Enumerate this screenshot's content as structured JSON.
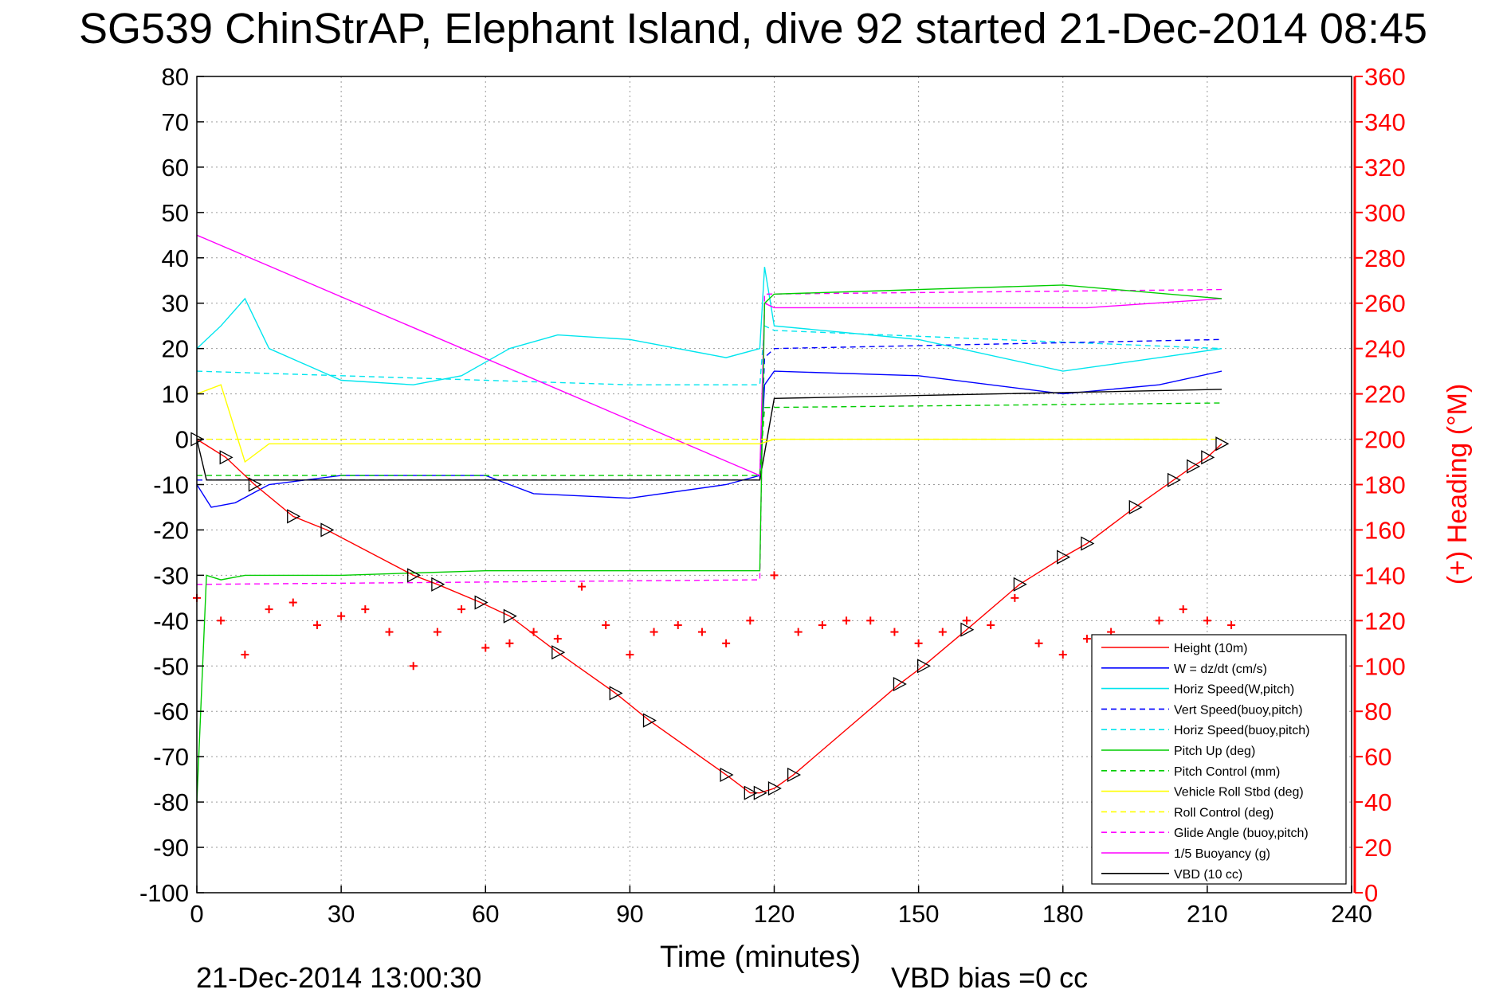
{
  "chart_data": {
    "type": "line",
    "title": "SG539 ChinStrAP, Elephant Island, dive 92 started 21-Dec-2014 08:45",
    "xlabel": "Time (minutes)",
    "ylabel_right": "(+) Heading (°M)",
    "footer_left": "21-Dec-2014 13:00:30",
    "footer_right": "VBD bias =0 cc",
    "xlim": [
      0,
      240
    ],
    "ylim": [
      -100,
      80
    ],
    "ylim_right": [
      0,
      360
    ],
    "xticks": [
      0,
      30,
      60,
      90,
      120,
      150,
      180,
      210,
      240
    ],
    "yticks": [
      80,
      70,
      60,
      50,
      40,
      30,
      20,
      10,
      0,
      -10,
      -20,
      -30,
      -40,
      -50,
      -60,
      -70,
      -80,
      -90,
      -100
    ],
    "yticks_right": [
      360,
      340,
      320,
      300,
      280,
      260,
      240,
      220,
      200,
      180,
      160,
      140,
      120,
      100,
      80,
      60,
      40,
      20,
      0
    ],
    "grid": true,
    "legend_position": "bottom-right",
    "colors": {
      "right_axis": "#ff0000",
      "grid": "#9a9a9a"
    },
    "series": [
      {
        "name": "Height (10m)",
        "color": "#ff0000",
        "style": "solid",
        "marker": "triangle",
        "x": [
          0,
          6,
          12,
          20,
          27,
          45,
          50,
          59,
          65,
          75,
          87,
          94,
          110,
          115,
          117,
          120,
          124,
          146,
          151,
          160,
          171,
          180,
          185,
          195,
          203,
          207,
          210,
          213
        ],
        "y": [
          0,
          -4,
          -10,
          -17,
          -20,
          -30,
          -32,
          -36,
          -39,
          -47,
          -56,
          -62,
          -74,
          -78,
          -78,
          -77,
          -74,
          -54,
          -50,
          -42,
          -32,
          -26,
          -23,
          -15,
          -9,
          -6,
          -4,
          -1
        ]
      },
      {
        "name": "W = dz/dt (cm/s)",
        "color": "#0000ff",
        "style": "solid",
        "x": [
          0,
          3,
          8,
          15,
          30,
          60,
          70,
          90,
          110,
          117,
          118,
          120,
          150,
          180,
          200,
          213
        ],
        "y": [
          -10,
          -15,
          -14,
          -10,
          -8,
          -8,
          -12,
          -13,
          -10,
          -8,
          12,
          15,
          14,
          10,
          12,
          15
        ]
      },
      {
        "name": "Horiz Speed(W,pitch)",
        "color": "#00e5ee",
        "style": "solid",
        "x": [
          0,
          5,
          10,
          15,
          30,
          45,
          55,
          65,
          75,
          90,
          110,
          117,
          118,
          120,
          150,
          180,
          200,
          213
        ],
        "y": [
          20,
          25,
          31,
          20,
          13,
          12,
          14,
          20,
          23,
          22,
          18,
          20,
          38,
          25,
          22,
          15,
          18,
          20
        ]
      },
      {
        "name": "Vert Speed(buoy,pitch)",
        "color": "#0000ff",
        "style": "dashed",
        "x": [
          0,
          117,
          118,
          120,
          213
        ],
        "y": [
          -9,
          -9,
          18,
          20,
          22
        ]
      },
      {
        "name": "Horiz Speed(buoy,pitch)",
        "color": "#00e5ee",
        "style": "dashed",
        "x": [
          0,
          30,
          60,
          90,
          117,
          118,
          120,
          213
        ],
        "y": [
          15,
          14,
          13,
          12,
          12,
          25,
          24,
          20
        ]
      },
      {
        "name": "Pitch Up (deg)",
        "color": "#00cc00",
        "style": "solid",
        "x": [
          0,
          2,
          5,
          10,
          30,
          60,
          90,
          117,
          118,
          120,
          150,
          180,
          213
        ],
        "y": [
          -80,
          -30,
          -31,
          -30,
          -30,
          -29,
          -29,
          -29,
          30,
          32,
          33,
          34,
          31
        ]
      },
      {
        "name": "Pitch Control (mm)",
        "color": "#00cc00",
        "style": "dashed",
        "x": [
          0,
          117,
          118,
          213
        ],
        "y": [
          -8,
          -8,
          7,
          8
        ]
      },
      {
        "name": "Vehicle Roll Stbd (deg)",
        "color": "#ffff00",
        "style": "solid",
        "x": [
          0,
          5,
          10,
          15,
          30,
          60,
          90,
          117,
          120,
          150,
          180,
          210
        ],
        "y": [
          10,
          12,
          -5,
          -1,
          -1,
          -1,
          -1,
          -1,
          0,
          0,
          0,
          0
        ]
      },
      {
        "name": "Roll Control (deg)",
        "color": "#ffff00",
        "style": "dashed",
        "x": [
          0,
          213
        ],
        "y": [
          0,
          0
        ]
      },
      {
        "name": "Glide Angle (buoy,pitch)",
        "color": "#ff00ff",
        "style": "dashed",
        "x": [
          0,
          117,
          118,
          213
        ],
        "y": [
          -32,
          -31,
          32,
          33
        ]
      },
      {
        "name": "1/5 Buoyancy (g)",
        "color": "#ff00ff",
        "style": "solid",
        "x": [
          0,
          117,
          118,
          120,
          185,
          213
        ],
        "y": [
          45,
          -8,
          30,
          29,
          29,
          31
        ]
      },
      {
        "name": "VBD (10 cc)",
        "color": "#000000",
        "style": "solid",
        "x": [
          0,
          2,
          117,
          120,
          213
        ],
        "y": [
          0,
          -9,
          -9,
          9,
          11
        ]
      },
      {
        "name": "Heading",
        "color": "#ff0000",
        "style": "markers",
        "marker": "+",
        "axis": "right",
        "x": [
          0,
          5,
          10,
          15,
          20,
          25,
          30,
          35,
          40,
          45,
          50,
          55,
          60,
          65,
          70,
          75,
          80,
          85,
          90,
          95,
          100,
          105,
          110,
          115,
          120,
          125,
          130,
          135,
          140,
          145,
          150,
          155,
          160,
          165,
          170,
          175,
          180,
          185,
          190,
          195,
          200,
          205,
          210,
          215
        ],
        "y": [
          130,
          120,
          105,
          125,
          128,
          118,
          122,
          125,
          115,
          100,
          115,
          125,
          108,
          110,
          115,
          112,
          135,
          118,
          105,
          115,
          118,
          115,
          110,
          120,
          140,
          115,
          118,
          120,
          120,
          115,
          110,
          115,
          120,
          118,
          130,
          110,
          105,
          112,
          115,
          110,
          120,
          125,
          120,
          118
        ]
      }
    ]
  }
}
